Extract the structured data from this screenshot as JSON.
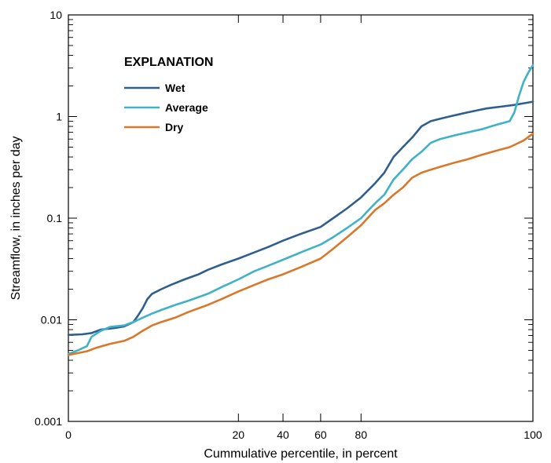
{
  "chart_data": {
    "type": "line",
    "xlabel": "Cummulative percentile, in percent",
    "ylabel": "Streamflow, in inches per day",
    "yscale": "log",
    "xlim": [
      0,
      100
    ],
    "ylim": [
      0.001,
      10
    ],
    "x_ticks": [
      {
        "label": "0",
        "percentile": 0
      },
      {
        "label": "20",
        "percentile": 36.6
      },
      {
        "label": "40",
        "percentile": 46.2
      },
      {
        "label": "60",
        "percentile": 54.3
      },
      {
        "label": "80",
        "percentile": 63.0
      },
      {
        "label": "100",
        "percentile": 100
      }
    ],
    "y_ticks": [
      "0.001",
      "0.01",
      "0.1",
      "1",
      "10"
    ],
    "y_tick_values": [
      0.001,
      0.01,
      0.1,
      1,
      10
    ],
    "legend": {
      "title": "EXPLANATION",
      "position": "top-left"
    },
    "grid": false,
    "series": [
      {
        "name": "Wet",
        "color": "#2e5f8e",
        "x": [
          0,
          3,
          5,
          7,
          10,
          12,
          14,
          15,
          16,
          17,
          18,
          20,
          22,
          25,
          28,
          30,
          33,
          36.6,
          40,
          43,
          46.2,
          50,
          54.3,
          57,
          60,
          63,
          66,
          68,
          70,
          72,
          74,
          76,
          78,
          80,
          82,
          84,
          86,
          88,
          90,
          93,
          96,
          98,
          100
        ],
        "values": [
          0.0071,
          0.0072,
          0.0074,
          0.008,
          0.0083,
          0.0086,
          0.0095,
          0.011,
          0.013,
          0.016,
          0.018,
          0.02,
          0.022,
          0.025,
          0.028,
          0.031,
          0.035,
          0.04,
          0.046,
          0.052,
          0.06,
          0.07,
          0.082,
          0.1,
          0.125,
          0.16,
          0.22,
          0.28,
          0.4,
          0.5,
          0.62,
          0.8,
          0.9,
          0.95,
          1.0,
          1.05,
          1.1,
          1.15,
          1.2,
          1.25,
          1.3,
          1.35,
          1.4
        ]
      },
      {
        "name": "Average",
        "color": "#3fb2c8",
        "x": [
          0,
          2,
          4,
          5,
          7,
          9,
          12,
          14,
          16,
          18,
          20,
          23,
          26,
          30,
          33,
          36.6,
          40,
          43,
          46.2,
          50,
          54.3,
          57,
          60,
          63,
          66,
          68,
          70,
          72,
          74,
          76,
          78,
          80,
          83,
          86,
          89,
          91,
          93,
          95,
          96,
          97,
          98,
          99,
          100
        ],
        "values": [
          0.0046,
          0.005,
          0.0055,
          0.0068,
          0.0078,
          0.0085,
          0.0088,
          0.0095,
          0.0105,
          0.0115,
          0.0125,
          0.014,
          0.0155,
          0.018,
          0.021,
          0.025,
          0.03,
          0.034,
          0.039,
          0.046,
          0.055,
          0.065,
          0.08,
          0.1,
          0.14,
          0.17,
          0.24,
          0.3,
          0.38,
          0.45,
          0.55,
          0.6,
          0.65,
          0.7,
          0.75,
          0.8,
          0.85,
          0.9,
          1.1,
          1.6,
          2.2,
          2.7,
          3.2
        ]
      },
      {
        "name": "Dry",
        "color": "#d9782b",
        "x": [
          0,
          2,
          4,
          6,
          9,
          12,
          14,
          16,
          18,
          20,
          23,
          26,
          30,
          33,
          36.6,
          40,
          43,
          46.2,
          50,
          54.3,
          57,
          60,
          63,
          66,
          68,
          70,
          72,
          74,
          76,
          78,
          80,
          83,
          86,
          89,
          92,
          95,
          98,
          100
        ],
        "values": [
          0.0045,
          0.0047,
          0.0049,
          0.0053,
          0.0058,
          0.0062,
          0.0068,
          0.0078,
          0.0088,
          0.0095,
          0.0105,
          0.012,
          0.014,
          0.016,
          0.019,
          0.022,
          0.025,
          0.028,
          0.033,
          0.04,
          0.05,
          0.065,
          0.085,
          0.12,
          0.14,
          0.17,
          0.2,
          0.25,
          0.28,
          0.3,
          0.32,
          0.35,
          0.38,
          0.42,
          0.46,
          0.5,
          0.58,
          0.68
        ]
      }
    ]
  }
}
